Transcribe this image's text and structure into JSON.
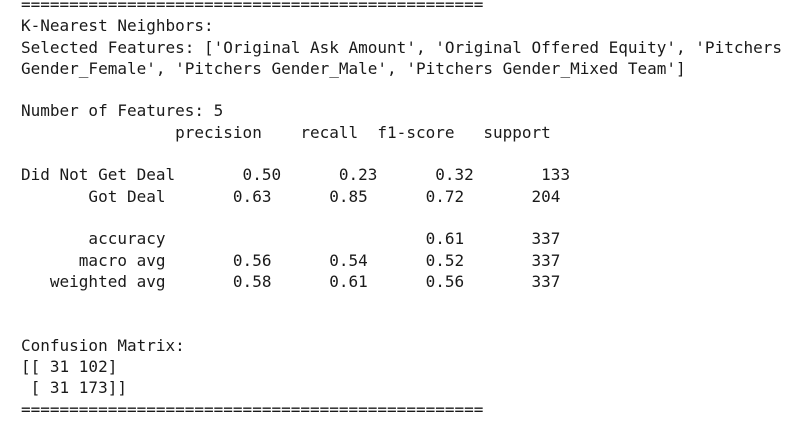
{
  "output": {
    "lines": [
      "================================================",
      "K-Nearest Neighbors:",
      "Selected Features: ['Original Ask Amount', 'Original Offered Equity', 'Pitchers",
      "Gender_Female', 'Pitchers Gender_Male', 'Pitchers Gender_Mixed Team']",
      "",
      "Number of Features: 5",
      "                precision    recall  f1-score   support",
      "",
      "Did Not Get Deal       0.50      0.23      0.32       133",
      "       Got Deal       0.63      0.85      0.72       204",
      "",
      "       accuracy                           0.61       337",
      "      macro avg       0.56      0.54      0.52       337",
      "   weighted avg       0.58      0.61      0.56       337",
      "",
      "",
      "Confusion Matrix:",
      "[[ 31 102]",
      " [ 31 173]]",
      "================================================"
    ]
  }
}
